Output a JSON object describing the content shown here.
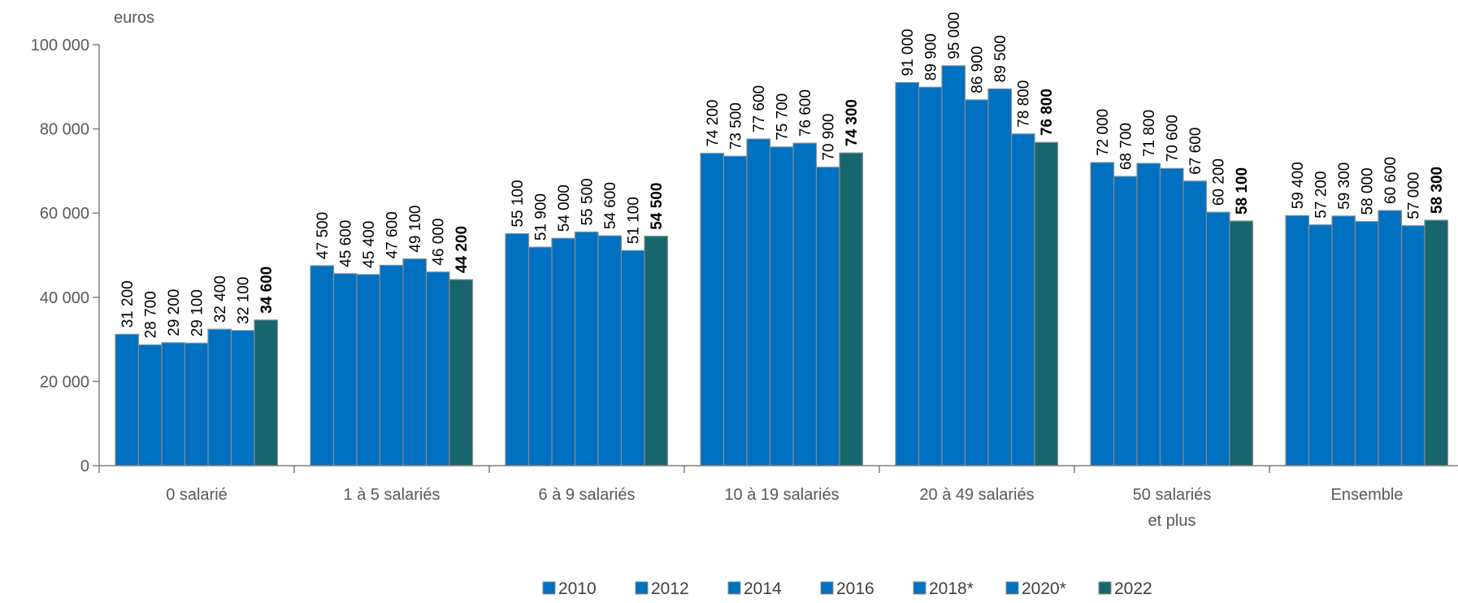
{
  "chart_data": {
    "type": "bar",
    "unit_label": "euros",
    "categories": [
      "0 salarié",
      "1 à 5 salariés",
      "6 à 9 salariés",
      "10 à 19 salariés",
      "20 à 49 salariés",
      "50 salariés|et plus",
      "Ensemble"
    ],
    "series": [
      {
        "name": "2010",
        "color": "#0070C0",
        "values": [
          31200,
          47500,
          55100,
          74200,
          91000,
          72000,
          59400
        ]
      },
      {
        "name": "2012",
        "color": "#0070C0",
        "values": [
          28700,
          45600,
          51900,
          73500,
          89900,
          68700,
          57200
        ]
      },
      {
        "name": "2014",
        "color": "#0070C0",
        "values": [
          29200,
          45400,
          54000,
          77600,
          95000,
          71800,
          59300
        ]
      },
      {
        "name": "2016",
        "color": "#0070C0",
        "values": [
          29100,
          47600,
          55500,
          75700,
          86900,
          70600,
          58000
        ]
      },
      {
        "name": "2018*",
        "color": "#0070C0",
        "values": [
          32400,
          49100,
          54600,
          76600,
          89500,
          67600,
          60600
        ]
      },
      {
        "name": "2020*",
        "color": "#0070C0",
        "values": [
          32100,
          46000,
          51100,
          70900,
          78800,
          60200,
          57000
        ]
      },
      {
        "name": "2022",
        "color": "#17666E",
        "values": [
          34600,
          44200,
          54500,
          74300,
          76800,
          58100,
          58300
        ]
      }
    ],
    "data_labels": [
      [
        "31 200",
        "28 700",
        "29 200",
        "29 100",
        "32 400",
        "32 100",
        "34 600"
      ],
      [
        "47 500",
        "45 600",
        "45 400",
        "47 600",
        "49 100",
        "46 000",
        "44 200"
      ],
      [
        "55 100",
        "51 900",
        "54 000",
        "55 500",
        "54 600",
        "51 100",
        "54 500"
      ],
      [
        "74 200",
        "73 500",
        "77 600",
        "75 700",
        "76 600",
        "70 900",
        "74 300"
      ],
      [
        "91 000",
        "89 900",
        "95 000",
        "86 900",
        "89 500",
        "78 800",
        "76 800"
      ],
      [
        "72 000",
        "68 700",
        "71 800",
        "70 600",
        "67 600",
        "60 200",
        "58 100"
      ],
      [
        "59 400",
        "57 200",
        "59 300",
        "58 000",
        "60 600",
        "57 000",
        "58 300"
      ]
    ],
    "y_ticks": [
      "0",
      "20 000",
      "40 000",
      "60 000",
      "80 000",
      "100 000"
    ],
    "y_tick_values": [
      0,
      20000,
      40000,
      60000,
      80000,
      100000
    ],
    "ylim": [
      0,
      100000
    ],
    "title": "",
    "xlabel": "",
    "ylabel": "",
    "grid": false,
    "legend_position": "bottom",
    "bold_series": "2022",
    "axis_color": "#7F7F7F",
    "bar_edge_color": "#8C8C8C"
  }
}
